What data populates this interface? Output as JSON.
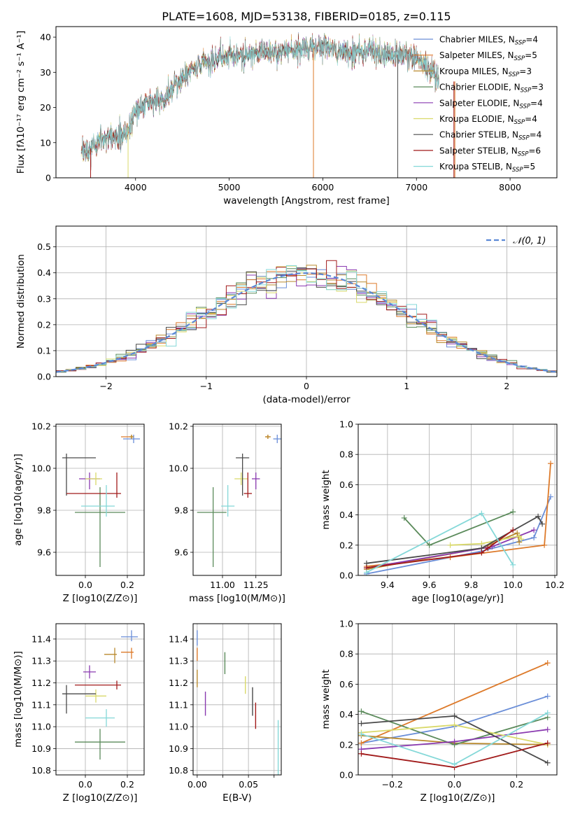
{
  "title": "PLATE=1608, MJD=53138, FIBERID=0185, z=0.115",
  "colors": [
    "#6a8ed8",
    "#dd7a2a",
    "#b98a2e",
    "#5a8a5a",
    "#8a3ab0",
    "#d9d96a",
    "#4a4a4a",
    "#a11a1a",
    "#84d8d8"
  ],
  "legend_top": [
    {
      "label": "Chabrier MILES, N",
      "sub": "SSP",
      "tail": "=4"
    },
    {
      "label": "Salpeter MILES, N",
      "sub": "SSP",
      "tail": "=5"
    },
    {
      "label": "Kroupa MILES, N",
      "sub": "SSP",
      "tail": "=3"
    },
    {
      "label": "Chabrier ELODIE, N",
      "sub": "SSP",
      "tail": "=3"
    },
    {
      "label": "Salpeter ELODIE, N",
      "sub": "SSP",
      "tail": "=4"
    },
    {
      "label": "Kroupa ELODIE, N",
      "sub": "SSP",
      "tail": "=4"
    },
    {
      "label": "Chabrier STELIB, N",
      "sub": "SSP",
      "tail": "=4"
    },
    {
      "label": "Salpeter STELIB, N",
      "sub": "SSP",
      "tail": "=6"
    },
    {
      "label": "Kroupa STELIB, N",
      "sub": "SSP",
      "tail": "=5"
    }
  ],
  "legend_hist": "𝒩(0, 1)",
  "chart_data": [
    {
      "type": "line",
      "panel": "spectrum",
      "xlabel": "wavelength [Angstrom, rest frame]",
      "ylabel": "Flux [fλ10⁻¹⁷ erg cm⁻² s⁻¹ A⁻¹]",
      "xlim": [
        3150,
        8500
      ],
      "ylim": [
        0,
        43
      ],
      "xticks": [
        4000,
        5000,
        6000,
        7000,
        8000
      ],
      "yticks": [
        0,
        10,
        20,
        30,
        40
      ],
      "continuum": {
        "x": [
          3400,
          3500,
          3600,
          3700,
          3800,
          3900,
          4000,
          4100,
          4200,
          4300,
          4400,
          4500,
          4600,
          4700,
          4800,
          4900,
          5000,
          5100,
          5200,
          5300,
          5400,
          5500,
          5600,
          5700,
          5800,
          5900,
          6000,
          6100,
          6200,
          6300,
          6400,
          6500,
          6600,
          6700,
          6800,
          6900,
          7000,
          7100,
          7200,
          7250
        ],
        "y": [
          7.5,
          8,
          10,
          11,
          12,
          13,
          19,
          21,
          22,
          22,
          26,
          29,
          31,
          33,
          33,
          34,
          35,
          35,
          35,
          35.5,
          36,
          36,
          36.5,
          37,
          37,
          37,
          37.5,
          37,
          36,
          36,
          36,
          36,
          35.5,
          35,
          35,
          34.5,
          34,
          32,
          29,
          27
        ]
      }
    },
    {
      "type": "step",
      "panel": "residual-histogram",
      "xlabel": "(data-model)/error",
      "ylabel": "Normed distribution",
      "xlim": [
        -2.5,
        2.5
      ],
      "ylim": [
        0,
        0.58
      ],
      "xticks": [
        -2,
        -1,
        0,
        1,
        2
      ],
      "yticks": [
        0,
        0.1,
        0.2,
        0.3,
        0.4,
        0.5
      ],
      "bin_width": 0.1,
      "reference_series": "N(0,1)"
    },
    {
      "type": "scatter",
      "panel": "age-vs-Z",
      "xlabel": "Z [log10(Z/Z⊙)]",
      "ylabel": "age [log10(age/yr)]",
      "xlim": [
        -0.14,
        0.28
      ],
      "ylim": [
        9.49,
        10.21
      ],
      "xticks": [
        0.0,
        0.2
      ],
      "yticks": [
        9.6,
        9.8,
        10.0,
        10.2
      ],
      "points": [
        {
          "x": 0.23,
          "y": 10.14,
          "xerr": [
            0.05,
            0.03
          ],
          "yerr": [
            0.02,
            0.02
          ]
        },
        {
          "x": 0.22,
          "y": 10.15,
          "xerr": [
            0.05,
            0.01
          ],
          "yerr": [
            0.01,
            0.01
          ]
        },
        {
          "x": 0.22,
          "y": 10.15,
          "xerr": [
            0.01,
            0.01
          ],
          "yerr": [
            0.01,
            0.01
          ]
        },
        {
          "x": 0.07,
          "y": 9.79,
          "xerr": [
            0.12,
            0.12
          ],
          "yerr": [
            0.26,
            0.12
          ]
        },
        {
          "x": 0.02,
          "y": 9.95,
          "xerr": [
            0.05,
            0.05
          ],
          "yerr": [
            0.05,
            0.03
          ]
        },
        {
          "x": 0.05,
          "y": 9.95,
          "xerr": [
            0.05,
            0.03
          ],
          "yerr": [
            0.03,
            0.03
          ]
        },
        {
          "x": -0.09,
          "y": 10.05,
          "xerr": [
            0.02,
            0.14
          ],
          "yerr": [
            0.18,
            0.02
          ]
        },
        {
          "x": 0.15,
          "y": 9.88,
          "xerr": [
            0.24,
            0.02
          ],
          "yerr": [
            0.02,
            0.1
          ]
        },
        {
          "x": 0.1,
          "y": 9.82,
          "xerr": [
            0.12,
            0.04
          ],
          "yerr": [
            0.05,
            0.1
          ]
        }
      ]
    },
    {
      "type": "scatter",
      "panel": "age-vs-mass",
      "xlabel": "mass [log10(M/M⊙)]",
      "ylabel": "",
      "xlim": [
        10.78,
        11.44
      ],
      "ylim": [
        9.49,
        10.21
      ],
      "xticks": [
        11.0,
        11.25
      ],
      "yticks": [
        9.6,
        9.8,
        10.0,
        10.2
      ],
      "points": [
        {
          "x": 11.41,
          "y": 10.14
        },
        {
          "x": 11.34,
          "y": 10.15
        },
        {
          "x": 11.34,
          "y": 10.15
        },
        {
          "x": 10.93,
          "y": 9.79
        },
        {
          "x": 11.25,
          "y": 9.95
        },
        {
          "x": 11.14,
          "y": 9.95
        },
        {
          "x": 11.15,
          "y": 10.05
        },
        {
          "x": 11.19,
          "y": 9.88
        },
        {
          "x": 11.04,
          "y": 9.82
        }
      ]
    },
    {
      "type": "line",
      "panel": "mass-weight-vs-age",
      "xlabel": "age [log10(age/yr)]",
      "ylabel": "mass weight",
      "xlim": [
        9.26,
        10.21
      ],
      "ylim": [
        0,
        1
      ],
      "xticks": [
        9.4,
        9.6,
        9.8,
        10.0,
        10.2
      ],
      "yticks": [
        0,
        0.2,
        0.4,
        0.6,
        0.8,
        1.0
      ],
      "series": [
        {
          "x": [
            9.3,
            9.85,
            10.1,
            10.18
          ],
          "y": [
            0.01,
            0.16,
            0.25,
            0.52
          ]
        },
        {
          "x": [
            9.3,
            9.7,
            10.15,
            10.18
          ],
          "y": [
            0.06,
            0.12,
            0.2,
            0.74
          ]
        },
        {
          "x": [
            9.3,
            9.85,
            10.02,
            10.03
          ],
          "y": [
            0.04,
            0.18,
            0.28,
            0.22
          ]
        },
        {
          "x": [
            9.48,
            9.6,
            10.0
          ],
          "y": [
            0.38,
            0.2,
            0.42
          ]
        },
        {
          "x": [
            9.3,
            9.9,
            10.1
          ],
          "y": [
            0.05,
            0.19,
            0.3
          ]
        },
        {
          "x": [
            9.7,
            9.85,
            10.03,
            10.04
          ],
          "y": [
            0.2,
            0.21,
            0.26,
            0.24
          ]
        },
        {
          "x": [
            9.3,
            9.85,
            10.12,
            10.14
          ],
          "y": [
            0.08,
            0.18,
            0.39,
            0.34
          ]
        },
        {
          "x": [
            9.3,
            9.85,
            9.88,
            10.0
          ],
          "y": [
            0.05,
            0.15,
            0.18,
            0.3
          ]
        },
        {
          "x": [
            9.3,
            9.85,
            10.0
          ],
          "y": [
            0.02,
            0.41,
            0.07
          ]
        }
      ]
    },
    {
      "type": "scatter",
      "panel": "mass-vs-Z",
      "xlabel": "Z [log10(Z/Z⊙)]",
      "ylabel": "mass [log10(M/M⊙)]",
      "xlim": [
        -0.14,
        0.28
      ],
      "ylim": [
        10.78,
        11.47
      ],
      "xticks": [
        0.0,
        0.2
      ],
      "yticks": [
        10.8,
        10.9,
        11.0,
        11.1,
        11.2,
        11.3,
        11.4
      ],
      "points": [
        {
          "x": 0.22,
          "y": 11.41
        },
        {
          "x": 0.22,
          "y": 11.34
        },
        {
          "x": 0.14,
          "y": 11.33
        },
        {
          "x": 0.07,
          "y": 10.93
        },
        {
          "x": 0.02,
          "y": 11.25
        },
        {
          "x": 0.05,
          "y": 11.14
        },
        {
          "x": -0.09,
          "y": 11.15
        },
        {
          "x": 0.15,
          "y": 11.19
        },
        {
          "x": 0.1,
          "y": 11.04
        }
      ]
    },
    {
      "type": "scatter",
      "panel": "mass-vs-EBV",
      "xlabel": "E(B-V)",
      "ylabel": "",
      "xlim": [
        -0.004,
        0.082
      ],
      "ylim": [
        10.78,
        11.47
      ],
      "xticks": [
        0.0,
        0.025,
        0.05,
        0.075
      ],
      "yticks": [
        10.8,
        10.9,
        11.0,
        11.1,
        11.2,
        11.3,
        11.4
      ],
      "points": [
        {
          "x": 0.0,
          "y": 11.4
        },
        {
          "x": 0.0,
          "y": 11.33
        },
        {
          "x": 0.0,
          "y": 11.22
        },
        {
          "x": 0.027,
          "y": 11.29
        },
        {
          "x": 0.008,
          "y": 11.11
        },
        {
          "x": 0.047,
          "y": 11.19
        },
        {
          "x": 0.054,
          "y": 11.12
        },
        {
          "x": 0.057,
          "y": 11.05
        },
        {
          "x": 0.079,
          "y": 10.91
        }
      ]
    },
    {
      "type": "line",
      "panel": "mass-weight-vs-Z",
      "xlabel": "Z [log10(Z/Z⊙)]",
      "ylabel": "mass weight",
      "xlim": [
        -0.31,
        0.33
      ],
      "ylim": [
        0,
        1
      ],
      "xticks": [
        -0.2,
        0.0,
        0.2
      ],
      "yticks": [
        0,
        0.2,
        0.4,
        0.6,
        0.8,
        1.0
      ],
      "series": [
        {
          "x": [
            -0.3,
            0.0,
            0.3
          ],
          "y": [
            0.21,
            0.32,
            0.52
          ]
        },
        {
          "x": [
            -0.3,
            0.3
          ],
          "y": [
            0.21,
            0.74
          ]
        },
        {
          "x": [
            -0.3,
            0.0,
            0.3
          ],
          "y": [
            0.26,
            0.21,
            0.2
          ]
        },
        {
          "x": [
            -0.3,
            0.0,
            0.3
          ],
          "y": [
            0.42,
            0.2,
            0.38
          ]
        },
        {
          "x": [
            -0.3,
            0.0,
            0.3
          ],
          "y": [
            0.17,
            0.22,
            0.3
          ]
        },
        {
          "x": [
            -0.3,
            0.0,
            0.3
          ],
          "y": [
            0.28,
            0.33,
            0.2
          ]
        },
        {
          "x": [
            -0.3,
            0.0,
            0.3
          ],
          "y": [
            0.34,
            0.39,
            0.08
          ]
        },
        {
          "x": [
            -0.3,
            0.0,
            0.3
          ],
          "y": [
            0.14,
            0.05,
            0.21
          ]
        },
        {
          "x": [
            -0.3,
            0.0,
            0.3
          ],
          "y": [
            0.27,
            0.07,
            0.41
          ]
        }
      ]
    }
  ]
}
